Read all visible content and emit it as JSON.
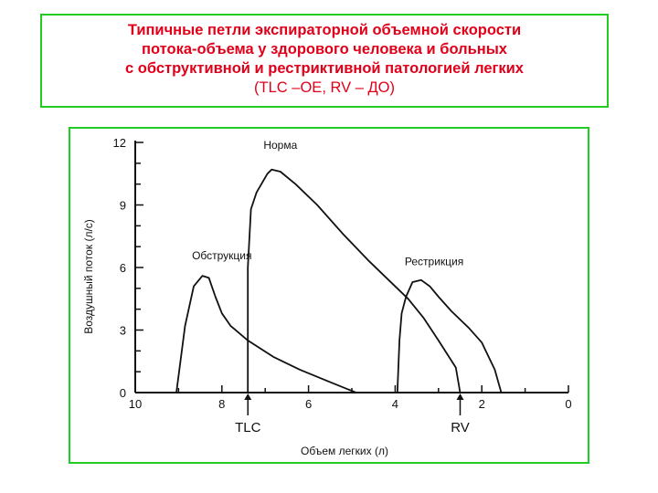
{
  "header": {
    "line1": "Типичные петли экспираторной объемной скорости",
    "line2": "потока-объема у здорового человека и больных",
    "line3": "с обструктивной и рестриктивной патологией легких",
    "line4": "(TLC –ОЕ, RV – ДО)"
  },
  "colors": {
    "frame": "#22cc22",
    "title": "#e0001a",
    "ink": "#111111"
  },
  "chart_data": {
    "type": "line",
    "title": "",
    "xlabel": "Объем легких (л)",
    "ylabel": "Воздушный поток (л/с)",
    "xlim": [
      10,
      0
    ],
    "ylim": [
      0,
      12
    ],
    "x_ticks": [
      10,
      8,
      6,
      4,
      2,
      0
    ],
    "y_ticks": [
      0,
      3,
      6,
      9,
      12
    ],
    "grid": false,
    "legend": "none",
    "markers": [
      {
        "label": "TLC",
        "x": 7.4
      },
      {
        "label": "RV",
        "x": 2.5
      }
    ],
    "series": [
      {
        "name": "Норма",
        "x": [
          7.4,
          7.4,
          7.33,
          7.2,
          6.95,
          6.85,
          6.65,
          6.3,
          5.8,
          5.2,
          4.6,
          4.05,
          3.7,
          3.35,
          3.0,
          2.6,
          2.5
        ],
        "y": [
          0,
          6.0,
          8.8,
          9.6,
          10.5,
          10.7,
          10.6,
          10.0,
          9.0,
          7.6,
          6.3,
          5.2,
          4.5,
          3.6,
          2.5,
          1.2,
          0
        ]
      },
      {
        "name": "Обструкция",
        "x": [
          9.05,
          8.85,
          8.65,
          8.45,
          8.3,
          8.15,
          8.0,
          7.8,
          7.4,
          6.8,
          6.2,
          5.5,
          4.9
        ],
        "y": [
          0,
          3.2,
          5.1,
          5.6,
          5.5,
          4.6,
          3.8,
          3.2,
          2.5,
          1.7,
          1.1,
          0.5,
          0
        ]
      },
      {
        "name": "Рестрикция",
        "x": [
          3.95,
          3.9,
          3.85,
          3.75,
          3.6,
          3.4,
          3.2,
          3.0,
          2.7,
          2.3,
          2.0,
          1.7,
          1.55
        ],
        "y": [
          0,
          2.5,
          3.8,
          4.6,
          5.3,
          5.4,
          5.1,
          4.6,
          3.9,
          3.1,
          2.4,
          1.1,
          0
        ]
      }
    ]
  }
}
